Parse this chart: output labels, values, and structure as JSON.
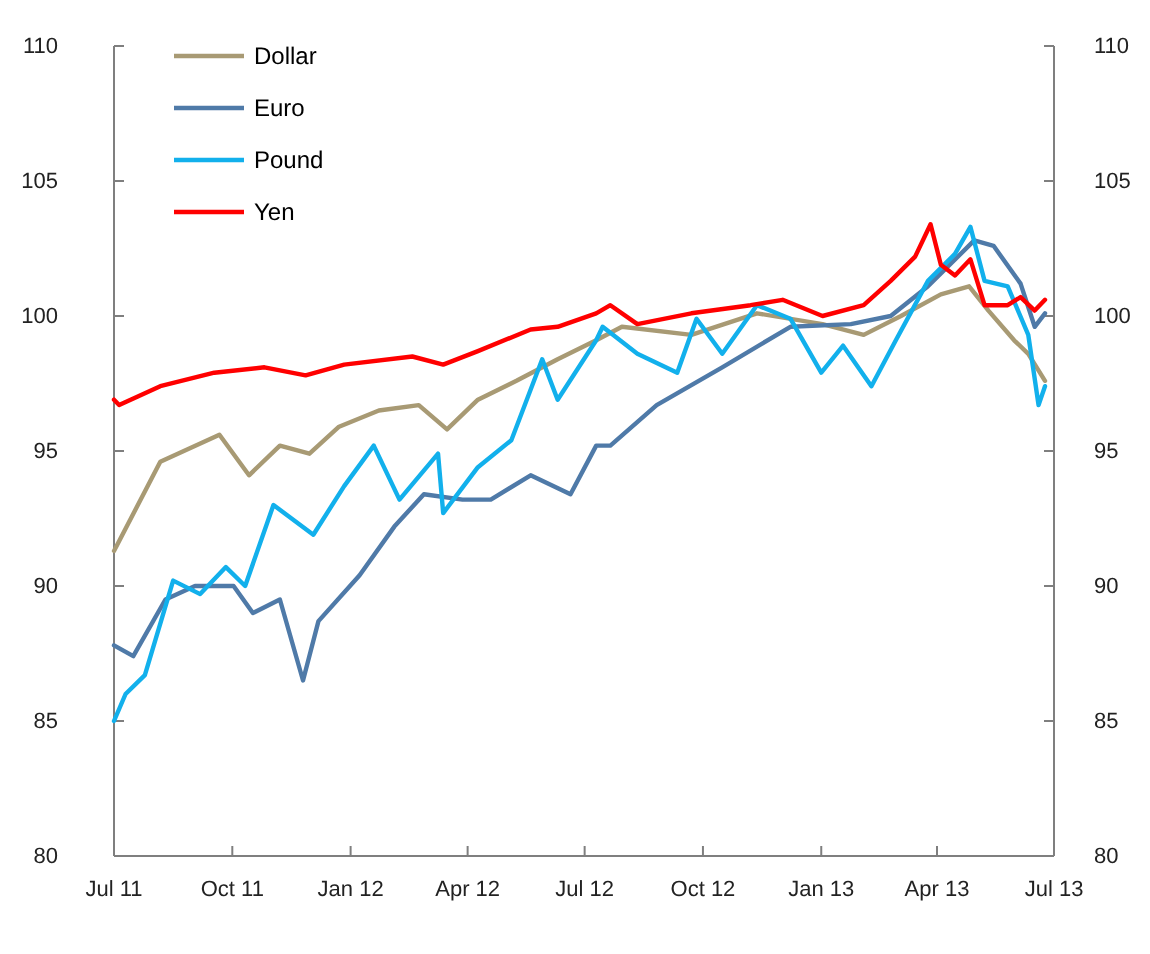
{
  "chart_data": {
    "type": "line",
    "legend": "top left",
    "grid": false,
    "xlim": [
      "2011-07-01",
      "2013-07-01"
    ],
    "xticks": [
      {
        "value": "2011-07-01",
        "label": "Jul 11"
      },
      {
        "value": "2011-10-01",
        "label": "Oct 11"
      },
      {
        "value": "2012-01-01",
        "label": "Jan 12"
      },
      {
        "value": "2012-04-01",
        "label": "Apr 12"
      },
      {
        "value": "2012-07-01",
        "label": "Jul 12"
      },
      {
        "value": "2012-10-01",
        "label": "Oct 12"
      },
      {
        "value": "2013-01-01",
        "label": "Jan 13"
      },
      {
        "value": "2013-04-01",
        "label": "Apr 13"
      },
      {
        "value": "2013-07-01",
        "label": "Jul 13"
      }
    ],
    "ylim": [
      80,
      110
    ],
    "yticks": [
      80,
      85,
      90,
      95,
      100,
      105,
      110
    ],
    "y2lim": [
      80,
      110
    ],
    "y2ticks": [
      80,
      85,
      90,
      95,
      100,
      105,
      110
    ],
    "series": [
      {
        "name": "Dollar",
        "color": "#a89a74",
        "x": [
          "2011-07-01",
          "2011-08-06",
          "2011-09-21",
          "2011-10-14",
          "2011-11-07",
          "2011-11-30",
          "2011-12-23",
          "2012-01-23",
          "2012-02-23",
          "2012-03-16",
          "2012-04-09",
          "2012-05-09",
          "2012-06-10",
          "2012-07-10",
          "2012-07-30",
          "2012-09-22",
          "2012-11-12",
          "2013-01-02",
          "2013-02-03",
          "2013-03-04",
          "2013-04-04",
          "2013-04-26",
          "2013-05-11",
          "2013-05-31",
          "2013-06-11",
          "2013-06-24"
        ],
        "values": [
          91.3,
          94.6,
          95.6,
          94.1,
          95.2,
          94.9,
          95.9,
          96.5,
          96.7,
          95.8,
          96.9,
          97.6,
          98.4,
          99.1,
          99.6,
          99.3,
          100.1,
          99.7,
          99.3,
          100,
          100.8,
          101.1,
          100.2,
          99.1,
          98.6,
          97.6
        ]
      },
      {
        "name": "Euro",
        "color": "#4f7aa8",
        "x": [
          "2011-07-01",
          "2011-07-16",
          "2011-08-10",
          "2011-09-02",
          "2011-10-02",
          "2011-10-17",
          "2011-11-07",
          "2011-11-25",
          "2011-12-07",
          "2012-01-08",
          "2012-02-04",
          "2012-02-27",
          "2012-03-28",
          "2012-04-19",
          "2012-05-20",
          "2012-06-20",
          "2012-07-10",
          "2012-07-21",
          "2012-08-26",
          "2012-10-16",
          "2012-12-08",
          "2013-01-24",
          "2013-02-24",
          "2013-03-25",
          "2013-04-30",
          "2013-05-15",
          "2013-06-05",
          "2013-06-16",
          "2013-06-24"
        ],
        "values": [
          87.8,
          87.4,
          89.5,
          90,
          90,
          89,
          89.5,
          86.5,
          88.7,
          90.4,
          92.2,
          93.4,
          93.2,
          93.2,
          94.1,
          93.4,
          95.2,
          95.2,
          96.7,
          98.1,
          99.6,
          99.7,
          100,
          101.1,
          102.8,
          102.6,
          101.2,
          99.6,
          100.1
        ]
      },
      {
        "name": "Pound",
        "color": "#12b0ec",
        "x": [
          "2011-07-01",
          "2011-07-10",
          "2011-07-25",
          "2011-08-16",
          "2011-09-06",
          "2011-09-26",
          "2011-10-11",
          "2011-11-02",
          "2011-12-03",
          "2011-12-27",
          "2012-01-19",
          "2012-02-08",
          "2012-03-09",
          "2012-03-13",
          "2012-04-09",
          "2012-05-05",
          "2012-05-29",
          "2012-06-10",
          "2012-07-10",
          "2012-07-15",
          "2012-08-11",
          "2012-09-11",
          "2012-09-26",
          "2012-10-16",
          "2012-11-12",
          "2012-12-08",
          "2013-01-01",
          "2013-01-18",
          "2013-02-09",
          "2013-02-28",
          "2013-03-25",
          "2013-04-15",
          "2013-04-27",
          "2013-05-08",
          "2013-05-26",
          "2013-06-11",
          "2013-06-19",
          "2013-06-24"
        ],
        "values": [
          85,
          86,
          86.7,
          90.2,
          89.7,
          90.7,
          90,
          93,
          91.9,
          93.7,
          95.2,
          93.2,
          94.9,
          92.7,
          94.4,
          95.4,
          98.4,
          96.9,
          99.1,
          99.6,
          98.6,
          97.9,
          99.9,
          98.6,
          100.4,
          99.9,
          97.9,
          98.9,
          97.4,
          99.1,
          101.3,
          102.3,
          103.3,
          101.3,
          101.1,
          99.3,
          96.7,
          97.4
        ]
      },
      {
        "name": "Yen",
        "color": "#ff0000",
        "x": [
          "2011-07-01",
          "2011-07-05",
          "2011-08-06",
          "2011-09-17",
          "2011-10-26",
          "2011-11-27",
          "2011-12-27",
          "2012-02-18",
          "2012-03-13",
          "2012-04-09",
          "2012-05-20",
          "2012-06-10",
          "2012-07-10",
          "2012-07-21",
          "2012-08-11",
          "2012-09-22",
          "2012-11-07",
          "2012-12-02",
          "2013-01-02",
          "2013-02-03",
          "2013-02-24",
          "2013-03-15",
          "2013-03-27",
          "2013-04-04",
          "2013-04-15",
          "2013-04-27",
          "2013-05-08",
          "2013-05-26",
          "2013-06-05",
          "2013-06-16",
          "2013-06-24"
        ],
        "values": [
          96.9,
          96.7,
          97.4,
          97.9,
          98.1,
          97.8,
          98.2,
          98.5,
          98.2,
          98.7,
          99.5,
          99.6,
          100.1,
          100.4,
          99.7,
          100.1,
          100.4,
          100.6,
          100,
          100.4,
          101.3,
          102.2,
          103.4,
          101.9,
          101.5,
          102.1,
          100.4,
          100.4,
          100.7,
          100.2,
          100.6
        ]
      }
    ]
  }
}
